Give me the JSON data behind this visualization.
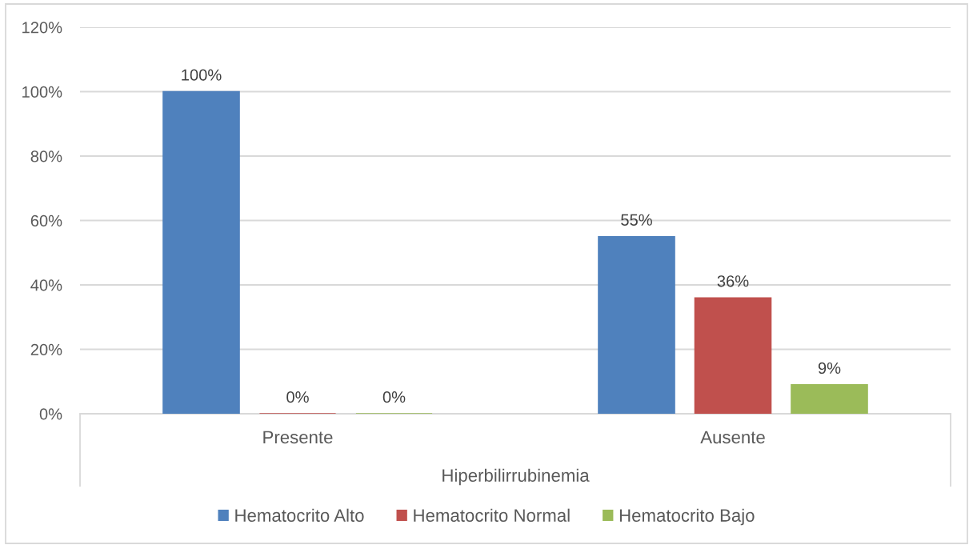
{
  "chart_data": {
    "type": "bar",
    "categories": [
      "Presente",
      "Ausente"
    ],
    "xlabel": "Hiperbilirrubinemia",
    "series": [
      {
        "name": "Hematocrito Alto",
        "color": "#4f81bd",
        "values": [
          100,
          55
        ],
        "value_labels": [
          "100%",
          "55%"
        ]
      },
      {
        "name": "Hematocrito Normal",
        "color": "#c0504d",
        "values": [
          0,
          36
        ],
        "value_labels": [
          "0%",
          "36%"
        ]
      },
      {
        "name": "Hematocrito Bajo",
        "color": "#9bbb59",
        "values": [
          0,
          9
        ],
        "value_labels": [
          "0%",
          "9%"
        ]
      }
    ],
    "ylim": [
      0,
      120
    ],
    "yticks": [
      {
        "value": 0,
        "label": "0%"
      },
      {
        "value": 20,
        "label": "20%"
      },
      {
        "value": 40,
        "label": "40%"
      },
      {
        "value": 60,
        "label": "60%"
      },
      {
        "value": 80,
        "label": "80%"
      },
      {
        "value": 100,
        "label": "100%"
      },
      {
        "value": 120,
        "label": "120%"
      }
    ],
    "grid": "y",
    "legend": "bottom"
  }
}
